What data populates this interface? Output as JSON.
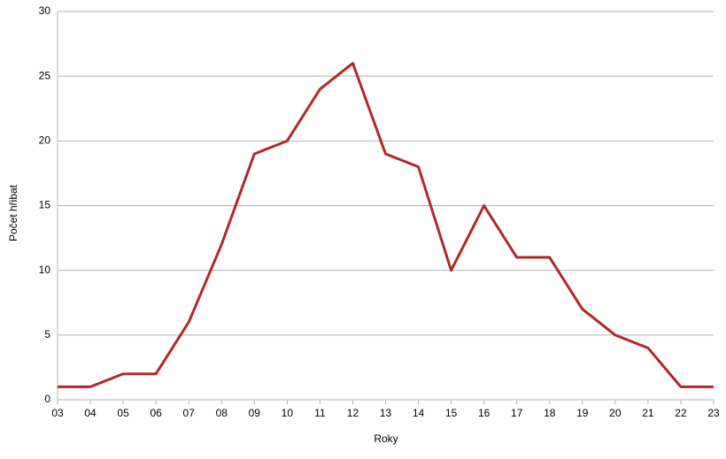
{
  "chart_data": {
    "type": "line",
    "x_label": "Roky",
    "y_label": "Počet hřibat",
    "categories": [
      "03",
      "04",
      "05",
      "06",
      "07",
      "08",
      "09",
      "10",
      "11",
      "12",
      "13",
      "14",
      "15",
      "16",
      "17",
      "18",
      "19",
      "20",
      "21",
      "22",
      "23"
    ],
    "values": [
      1,
      1,
      2,
      2,
      6,
      12,
      19,
      20,
      24,
      26,
      19,
      18,
      10,
      15,
      11,
      11,
      7,
      5,
      4,
      1,
      1
    ],
    "color": "#b0282a",
    "ylim": [
      0,
      30
    ],
    "yticks": [
      0,
      5,
      10,
      15,
      20,
      25,
      30
    ],
    "grid": true
  }
}
